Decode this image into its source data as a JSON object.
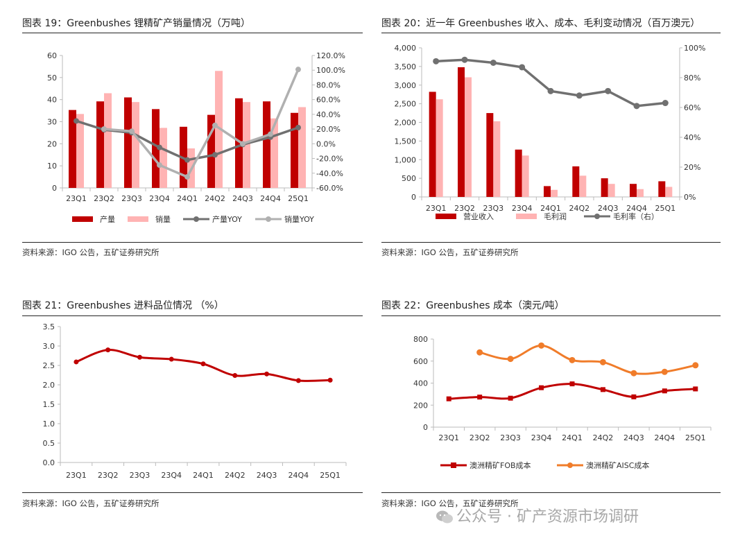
{
  "panels": [
    {
      "title": "图表 19：Greenbushes 锂精矿产销量情况（万吨）",
      "source": "资料来源：IGO 公告，五矿证券研究所"
    },
    {
      "title": "图表 20：近一年 Greenbushes 收入、成本、毛利变动情况（百万澳元）",
      "source": "资料来源：IGO 公告，五矿证券研究所"
    },
    {
      "title": "图表 21：Greenbushes 进料品位情况 （%）",
      "source": "资料来源：IGO 公告，五矿证券研究所"
    },
    {
      "title": "图表 22：Greenbushes 成本（澳元/吨）",
      "source": "资料来源：IGO 公告，五矿证券研究所"
    }
  ],
  "watermark": "公众号 · 矿产资源市场调研",
  "chart_data": [
    {
      "type": "bar",
      "title": "Greenbushes 锂精矿产销量情况（万吨）",
      "categories": [
        "23Q1",
        "23Q2",
        "23Q3",
        "23Q4",
        "24Q1",
        "24Q2",
        "24Q3",
        "24Q4",
        "25Q1"
      ],
      "ylim": [
        0,
        60
      ],
      "yticks": [
        "0",
        "10",
        "20",
        "30",
        "40",
        "50",
        "60"
      ],
      "y2lim": [
        -60,
        120
      ],
      "y2ticks": [
        "-60.0%",
        "-40.0%",
        "-20.0%",
        "0.0%",
        "20.0%",
        "40.0%",
        "60.0%",
        "80.0%",
        "100.0%",
        "120.0%"
      ],
      "series": [
        {
          "name": "产量",
          "kind": "bar",
          "axis": "left",
          "color": "#c00000",
          "values": [
            35.3,
            39.2,
            41.0,
            35.7,
            27.7,
            33.1,
            40.6,
            39.2,
            34.0
          ]
        },
        {
          "name": "销量",
          "kind": "bar",
          "axis": "left",
          "color": "#ffb3b3",
          "values": [
            33.5,
            42.9,
            38.9,
            27.2,
            17.9,
            53.0,
            38.9,
            31.5,
            36.6
          ]
        },
        {
          "name": "产量YOY",
          "kind": "line",
          "axis": "right",
          "color": "#707070",
          "values": [
            31,
            19,
            15,
            -5,
            -22,
            -15,
            -1,
            9,
            22
          ]
        },
        {
          "name": "销量YOY",
          "kind": "line",
          "axis": "right",
          "color": "#b0b0b0",
          "values": [
            null,
            20,
            17,
            -29,
            -45,
            25,
            0,
            13,
            101
          ]
        }
      ],
      "legend": "bottom"
    },
    {
      "type": "bar",
      "title": "近一年 Greenbushes 收入、成本、毛利变动情况（百万澳元）",
      "categories": [
        "23Q1",
        "23Q2",
        "23Q3",
        "23Q4",
        "24Q1",
        "24Q2",
        "24Q3",
        "24Q4",
        "25Q1"
      ],
      "ylim": [
        0,
        4000
      ],
      "yticks": [
        "0",
        "500",
        "1,000",
        "1,500",
        "2,000",
        "2,500",
        "3,000",
        "3,500",
        "4,000"
      ],
      "y2lim": [
        0,
        100
      ],
      "y2ticks": [
        "0%",
        "20%",
        "40%",
        "60%",
        "80%",
        "100%"
      ],
      "series": [
        {
          "name": "营业收入",
          "kind": "bar",
          "axis": "left",
          "color": "#c00000",
          "values": [
            2820,
            3480,
            2250,
            1270,
            290,
            820,
            500,
            350,
            420
          ]
        },
        {
          "name": "毛利润",
          "kind": "bar",
          "axis": "left",
          "color": "#ffb3b3",
          "values": [
            2620,
            3210,
            2030,
            1110,
            190,
            570,
            350,
            210,
            270
          ]
        },
        {
          "name": "毛利率（右）",
          "kind": "line",
          "axis": "right",
          "color": "#707070",
          "values": [
            91,
            92,
            90,
            87,
            71,
            68,
            71,
            61,
            63
          ]
        }
      ],
      "legend": "bottom"
    },
    {
      "type": "line",
      "title": "Greenbushes 进料品位情况（%）",
      "categories": [
        "23Q1",
        "23Q2",
        "23Q3",
        "23Q4",
        "24Q1",
        "24Q2",
        "24Q3",
        "24Q4",
        "25Q1"
      ],
      "ylim": [
        0,
        3.5
      ],
      "yticks": [
        "0.0",
        "0.5",
        "1.0",
        "1.5",
        "2.0",
        "2.5",
        "3.0",
        "3.5"
      ],
      "series": [
        {
          "name": "进料品位",
          "color": "#c00000",
          "values": [
            2.59,
            2.9,
            2.71,
            2.66,
            2.54,
            2.24,
            2.28,
            2.11,
            2.12
          ]
        }
      ]
    },
    {
      "type": "line",
      "title": "Greenbushes 成本（澳元/吨）",
      "categories": [
        "23Q1",
        "23Q2",
        "23Q3",
        "23Q4",
        "24Q1",
        "24Q2",
        "24Q3",
        "24Q4",
        "25Q1"
      ],
      "ylim": [
        0,
        800
      ],
      "yticks": [
        "0",
        "200",
        "400",
        "600",
        "800"
      ],
      "series": [
        {
          "name": "澳洲精矿FOB成本",
          "color": "#c00000",
          "marker": "square",
          "values": [
            257,
            273,
            263,
            358,
            393,
            341,
            275,
            329,
            347
          ]
        },
        {
          "name": "澳洲精矿AISC成本",
          "color": "#f07c2a",
          "marker": "circle",
          "values": [
            null,
            679,
            620,
            741,
            609,
            590,
            490,
            502,
            562
          ]
        }
      ],
      "legend": "bottom"
    }
  ]
}
